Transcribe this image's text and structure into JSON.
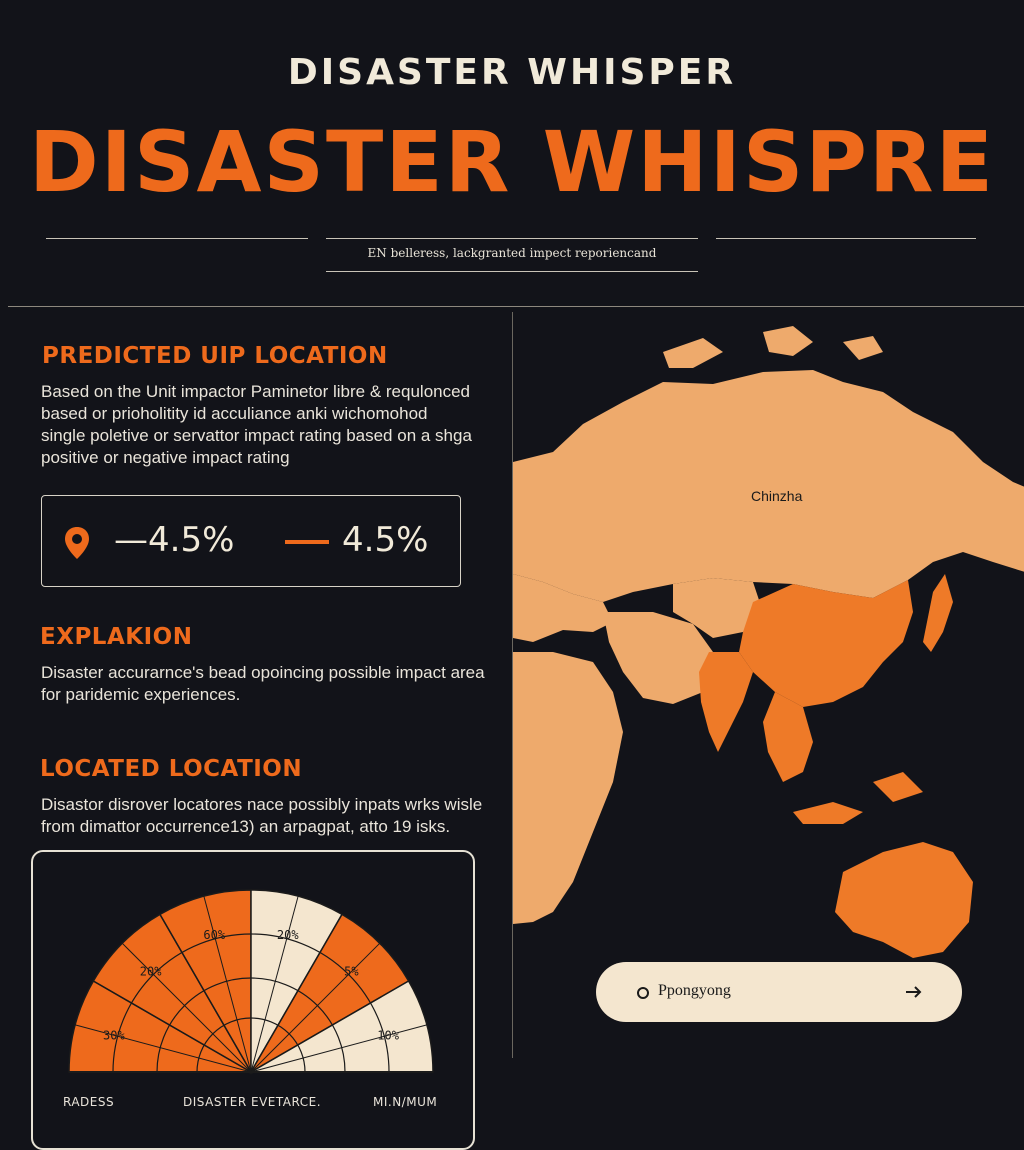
{
  "header": {
    "kicker": "DISASTER WHISPER",
    "title": "DISASTER WHISPRE",
    "tagline": "EN belleress,  lackgranted impect reporiencand"
  },
  "sections": {
    "predicted": {
      "heading": "PREDICTED UIP LOCATION",
      "lines": [
        "Based on the Unit impactor Paminetor libre & requlonced",
        "based or prioholitity id acculiance anki wichomohod",
        "single poletive or servattor impact rating based on a shga",
        "positive or negative impact rating"
      ]
    },
    "explanation": {
      "heading": "EXPLAKION",
      "lines": [
        "Disaster accurarnce's bead opoincing possible impact  area",
        " for paridemic experiences."
      ]
    },
    "located": {
      "heading": "LOCATED LOCATION",
      "lines": [
        "Disastor disrover locatores nace possibly inpats wrks wisle",
        " from dimattor occurrence13) an arpagpat, atto 19 isks."
      ]
    }
  },
  "stats": {
    "value_left": "—4.5%",
    "value_right": "4.5%",
    "icons": [
      "location-pin-icon",
      "orange-dash-icon"
    ]
  },
  "map": {
    "label": "Chinzha",
    "search_text": "Ppongyong",
    "search_icon": "circle-icon",
    "go_icon": "arrow-right-icon"
  },
  "colors": {
    "background": "#121319",
    "accent": "#ee6a1c",
    "land_light": "#eeaa6c",
    "land_highlight": "#ee7a28",
    "cream": "#f4e6cf"
  },
  "chart_data": {
    "type": "pie",
    "subtype": "semicircle",
    "segment_labels": [
      "30%",
      "20%",
      "60%",
      "20%",
      "5%",
      "10%"
    ],
    "segment_colors": [
      "orange",
      "orange",
      "orange",
      "cream",
      "orange",
      "cream"
    ],
    "footer_labels": [
      "RADESS",
      "DISASTER EVETARCE.",
      "MI.N/MUM"
    ]
  }
}
